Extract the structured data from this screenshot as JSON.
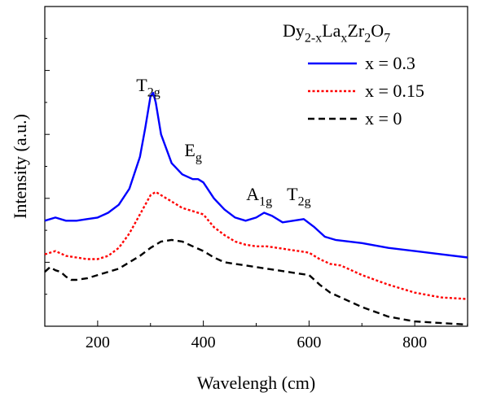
{
  "chart_data": {
    "type": "line",
    "xlabel": "Wavelengh (cm)",
    "ylabel": "Intensity (a.u.)",
    "xlim": [
      100,
      900
    ],
    "ylim": [
      0,
      1
    ],
    "xticks": [
      "200",
      "400",
      "600",
      "800"
    ],
    "yticks_labeled": false,
    "grid": false,
    "legend": {
      "placement": "top-right",
      "title": {
        "base": "Dy",
        "sub1": "2-x",
        "mid1": "La",
        "sub2": "x",
        "mid2": "Zr",
        "sub3": "2",
        "mid3": "O",
        "sub4": "7"
      }
    },
    "annotations": [
      {
        "base": "T",
        "sub": "2g",
        "x": 305
      },
      {
        "base": "E",
        "sub": "g",
        "x": 390
      },
      {
        "base": "A",
        "sub": "1g",
        "x": 515
      },
      {
        "base": "T",
        "sub": "2g",
        "x": 590
      }
    ],
    "series": [
      {
        "name": "x = 0.3",
        "color": "#0000ff",
        "style": "solid",
        "x": [
          100,
          120,
          140,
          160,
          180,
          200,
          220,
          240,
          260,
          280,
          290,
          300,
          305,
          310,
          320,
          340,
          360,
          380,
          390,
          400,
          420,
          440,
          460,
          480,
          500,
          515,
          530,
          550,
          570,
          590,
          610,
          630,
          650,
          700,
          750,
          800,
          850,
          900
        ],
        "y": [
          0.33,
          0.34,
          0.33,
          0.33,
          0.335,
          0.34,
          0.355,
          0.38,
          0.43,
          0.53,
          0.62,
          0.72,
          0.73,
          0.7,
          0.6,
          0.51,
          0.475,
          0.46,
          0.46,
          0.45,
          0.4,
          0.365,
          0.34,
          0.33,
          0.34,
          0.355,
          0.345,
          0.325,
          0.33,
          0.335,
          0.31,
          0.28,
          0.27,
          0.26,
          0.245,
          0.235,
          0.225,
          0.215
        ]
      },
      {
        "name": "x = 0.15",
        "color": "#ff0000",
        "style": "dotted",
        "x": [
          100,
          120,
          140,
          160,
          180,
          200,
          220,
          240,
          260,
          280,
          300,
          310,
          320,
          340,
          360,
          380,
          400,
          420,
          440,
          460,
          480,
          500,
          520,
          540,
          560,
          580,
          600,
          620,
          640,
          660,
          700,
          750,
          800,
          850,
          900
        ],
        "y": [
          0.225,
          0.235,
          0.22,
          0.215,
          0.21,
          0.21,
          0.22,
          0.245,
          0.29,
          0.35,
          0.41,
          0.42,
          0.41,
          0.39,
          0.37,
          0.36,
          0.35,
          0.31,
          0.285,
          0.265,
          0.255,
          0.25,
          0.25,
          0.245,
          0.24,
          0.235,
          0.23,
          0.21,
          0.195,
          0.19,
          0.16,
          0.13,
          0.105,
          0.09,
          0.085
        ]
      },
      {
        "name": "x = 0",
        "color": "#000000",
        "style": "dashed",
        "x": [
          100,
          110,
          120,
          130,
          140,
          150,
          160,
          180,
          200,
          220,
          240,
          260,
          280,
          300,
          320,
          340,
          360,
          380,
          400,
          420,
          440,
          460,
          480,
          500,
          520,
          540,
          560,
          580,
          600,
          620,
          640,
          660,
          680,
          700,
          750,
          800,
          850,
          900
        ],
        "y": [
          0.17,
          0.185,
          0.175,
          0.17,
          0.155,
          0.145,
          0.145,
          0.15,
          0.16,
          0.17,
          0.18,
          0.2,
          0.22,
          0.245,
          0.265,
          0.27,
          0.265,
          0.25,
          0.235,
          0.215,
          0.2,
          0.195,
          0.19,
          0.185,
          0.18,
          0.175,
          0.17,
          0.165,
          0.16,
          0.13,
          0.105,
          0.09,
          0.075,
          0.06,
          0.03,
          0.015,
          0.01,
          0.005
        ]
      }
    ]
  }
}
